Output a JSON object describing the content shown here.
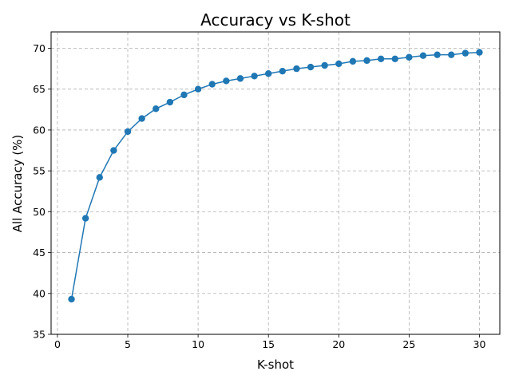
{
  "chart_data": {
    "type": "line",
    "title": "Accuracy vs K-shot",
    "xlabel": "K-shot",
    "ylabel": "All Accuracy (%)",
    "xlim": [
      -0.45,
      31.45
    ],
    "ylim": [
      35,
      72
    ],
    "xticks": [
      0,
      5,
      10,
      15,
      20,
      25,
      30
    ],
    "yticks": [
      35,
      40,
      45,
      50,
      55,
      60,
      65,
      70
    ],
    "grid": true,
    "series": [
      {
        "color": "#1f77b4",
        "marker": "circle",
        "x": [
          1,
          2,
          3,
          4,
          5,
          6,
          7,
          8,
          9,
          10,
          11,
          12,
          13,
          14,
          15,
          16,
          17,
          18,
          19,
          20,
          21,
          22,
          23,
          24,
          25,
          26,
          27,
          28,
          29,
          30
        ],
        "y": [
          39.3,
          49.2,
          54.2,
          57.5,
          59.8,
          61.4,
          62.6,
          63.4,
          64.3,
          65.0,
          65.6,
          66.0,
          66.3,
          66.6,
          66.9,
          67.2,
          67.5,
          67.7,
          67.9,
          68.1,
          68.4,
          68.5,
          68.7,
          68.7,
          68.9,
          69.1,
          69.2,
          69.2,
          69.4,
          69.5
        ]
      }
    ]
  }
}
